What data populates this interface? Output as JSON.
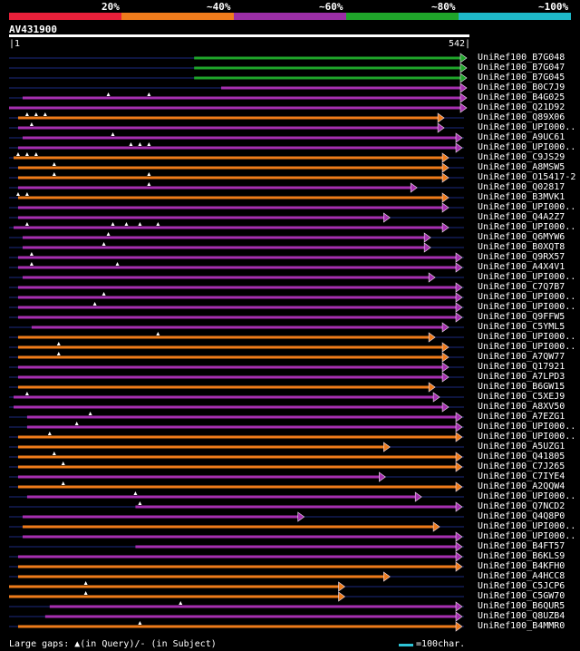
{
  "scale": {
    "labels": [
      "20%",
      "~40%",
      "~60%",
      "~80%",
      "~100%"
    ],
    "colors": [
      "#e8203a",
      "#f07c1c",
      "#9b2ea6",
      "#1fa52a",
      "#1eb8c8"
    ]
  },
  "query": {
    "id": "AV431900",
    "start": "|1",
    "end": "542|"
  },
  "hit_colors": {
    "green": "#1fa52a",
    "orange": "#ee7b1a",
    "purple": "#a62fb0",
    "navy": "#1b2a80"
  },
  "hits": [
    {
      "label": "UniRef100_B7G048",
      "c": "green",
      "s": 0.41,
      "e": 1.0,
      "g": []
    },
    {
      "label": "UniRef100_B7G047",
      "c": "green",
      "s": 0.41,
      "e": 1.0,
      "g": []
    },
    {
      "label": "UniRef100_B7G045",
      "c": "green",
      "s": 0.41,
      "e": 1.0,
      "g": []
    },
    {
      "label": "UniRef100_B0C7J9",
      "c": "purple",
      "s": 0.47,
      "e": 1.0,
      "g": []
    },
    {
      "label": "UniRef100_B4G025",
      "c": "purple",
      "s": 0.03,
      "e": 1.0,
      "g": [
        0.22,
        0.31
      ]
    },
    {
      "label": "UniRef100_Q21D92",
      "c": "purple",
      "s": 0.0,
      "e": 1.0,
      "g": []
    },
    {
      "label": "UniRef100_Q89X06",
      "c": "orange",
      "s": 0.02,
      "e": 0.95,
      "g": [
        0.04,
        0.06,
        0.08
      ]
    },
    {
      "label": "UniRef100_UPI000..",
      "c": "purple",
      "s": 0.02,
      "e": 0.95,
      "g": [
        0.05
      ]
    },
    {
      "label": "UniRef100_A9UC61",
      "c": "purple",
      "s": 0.03,
      "e": 0.99,
      "g": [
        0.23
      ]
    },
    {
      "label": "UniRef100_UPI000..",
      "c": "purple",
      "s": 0.02,
      "e": 0.99,
      "g": [
        0.27,
        0.29,
        0.31
      ]
    },
    {
      "label": "UniRef100_C9JS29",
      "c": "orange",
      "s": 0.01,
      "e": 0.96,
      "g": [
        0.02,
        0.04,
        0.06
      ]
    },
    {
      "label": "UniRef100_A8MSW5",
      "c": "orange",
      "s": 0.02,
      "e": 0.96,
      "g": [
        0.1
      ]
    },
    {
      "label": "UniRef100_O15417-2",
      "c": "orange",
      "s": 0.02,
      "e": 0.96,
      "g": [
        0.1,
        0.31
      ]
    },
    {
      "label": "UniRef100_Q02817",
      "c": "purple",
      "s": 0.02,
      "e": 0.89,
      "g": [
        0.31
      ]
    },
    {
      "label": "UniRef100_B3MVK1",
      "c": "orange",
      "s": 0.02,
      "e": 0.96,
      "g": [
        0.02,
        0.04
      ]
    },
    {
      "label": "UniRef100_UPI000..",
      "c": "purple",
      "s": 0.02,
      "e": 0.96,
      "g": []
    },
    {
      "label": "UniRef100_Q4A2Z7",
      "c": "purple",
      "s": 0.02,
      "e": 0.83,
      "g": []
    },
    {
      "label": "UniRef100_UPI000..",
      "c": "purple",
      "s": 0.01,
      "e": 0.96,
      "g": [
        0.04,
        0.23,
        0.26,
        0.29,
        0.33
      ]
    },
    {
      "label": "UniRef100_Q6MYW6",
      "c": "purple",
      "s": 0.03,
      "e": 0.92,
      "g": [
        0.22
      ]
    },
    {
      "label": "UniRef100_B0XQT8",
      "c": "purple",
      "s": 0.03,
      "e": 0.92,
      "g": [
        0.21
      ]
    },
    {
      "label": "UniRef100_Q9RX57",
      "c": "purple",
      "s": 0.02,
      "e": 0.99,
      "g": [
        0.05
      ]
    },
    {
      "label": "UniRef100_A4X4V1",
      "c": "purple",
      "s": 0.02,
      "e": 0.99,
      "g": [
        0.05,
        0.24
      ]
    },
    {
      "label": "UniRef100_UPI000..",
      "c": "purple",
      "s": 0.03,
      "e": 0.93,
      "g": []
    },
    {
      "label": "UniRef100_C7Q7B7",
      "c": "purple",
      "s": 0.02,
      "e": 0.99,
      "g": []
    },
    {
      "label": "UniRef100_UPI000..",
      "c": "purple",
      "s": 0.02,
      "e": 0.99,
      "g": [
        0.21
      ]
    },
    {
      "label": "UniRef100_UPI000..",
      "c": "purple",
      "s": 0.02,
      "e": 0.99,
      "g": [
        0.19
      ]
    },
    {
      "label": "UniRef100_Q9FFW5",
      "c": "purple",
      "s": 0.02,
      "e": 0.99,
      "g": []
    },
    {
      "label": "UniRef100_C5YML5",
      "c": "purple",
      "s": 0.05,
      "e": 0.96,
      "g": []
    },
    {
      "label": "UniRef100_UPI000..",
      "c": "orange",
      "s": 0.02,
      "e": 0.93,
      "g": [
        0.33
      ]
    },
    {
      "label": "UniRef100_UPI000..",
      "c": "orange",
      "s": 0.02,
      "e": 0.96,
      "g": [
        0.11
      ]
    },
    {
      "label": "UniRef100_A7QW77",
      "c": "orange",
      "s": 0.02,
      "e": 0.96,
      "g": [
        0.11
      ]
    },
    {
      "label": "UniRef100_Q17921",
      "c": "purple",
      "s": 0.02,
      "e": 0.96,
      "g": []
    },
    {
      "label": "UniRef100_A7LPD3",
      "c": "purple",
      "s": 0.02,
      "e": 0.96,
      "g": []
    },
    {
      "label": "UniRef100_B6GW15",
      "c": "orange",
      "s": 0.02,
      "e": 0.93,
      "g": []
    },
    {
      "label": "UniRef100_C5XEJ9",
      "c": "purple",
      "s": 0.01,
      "e": 0.94,
      "g": [
        0.04
      ]
    },
    {
      "label": "UniRef100_A8XV50",
      "c": "purple",
      "s": 0.01,
      "e": 0.96,
      "g": []
    },
    {
      "label": "UniRef100_A7EZG1",
      "c": "purple",
      "s": 0.04,
      "e": 0.99,
      "g": [
        0.18
      ]
    },
    {
      "label": "UniRef100_UPI000..",
      "c": "purple",
      "s": 0.04,
      "e": 0.99,
      "g": [
        0.15
      ]
    },
    {
      "label": "UniRef100_UPI000..",
      "c": "orange",
      "s": 0.02,
      "e": 0.99,
      "g": [
        0.09
      ]
    },
    {
      "label": "UniRef100_A5UZG1",
      "c": "orange",
      "s": 0.02,
      "e": 0.83,
      "g": []
    },
    {
      "label": "UniRef100_Q41805",
      "c": "orange",
      "s": 0.02,
      "e": 0.99,
      "g": [
        0.1
      ]
    },
    {
      "label": "UniRef100_C7J265",
      "c": "orange",
      "s": 0.02,
      "e": 0.99,
      "g": [
        0.12
      ]
    },
    {
      "label": "UniRef100_C7IYE4",
      "c": "purple",
      "s": 0.02,
      "e": 0.82,
      "g": []
    },
    {
      "label": "UniRef100_A2QQW4",
      "c": "orange",
      "s": 0.02,
      "e": 0.99,
      "g": [
        0.12
      ]
    },
    {
      "label": "UniRef100_UPI000..",
      "c": "purple",
      "s": 0.04,
      "e": 0.9,
      "g": [
        0.28
      ]
    },
    {
      "label": "UniRef100_Q7NCD2",
      "c": "purple",
      "s": 0.28,
      "e": 0.99,
      "g": [
        0.29
      ]
    },
    {
      "label": "UniRef100_Q4Q8P0",
      "c": "purple",
      "s": 0.03,
      "e": 0.64,
      "g": []
    },
    {
      "label": "UniRef100_UPI000..",
      "c": "orange",
      "s": 0.03,
      "e": 0.94,
      "g": []
    },
    {
      "label": "UniRef100_UPI000..",
      "c": "purple",
      "s": 0.03,
      "e": 0.99,
      "g": []
    },
    {
      "label": "UniRef100_B4FT57",
      "c": "purple",
      "s": 0.28,
      "e": 0.99,
      "g": []
    },
    {
      "label": "UniRef100_B6KLS9",
      "c": "purple",
      "s": 0.02,
      "e": 0.99,
      "g": []
    },
    {
      "label": "UniRef100_B4KFH0",
      "c": "orange",
      "s": 0.02,
      "e": 0.99,
      "g": []
    },
    {
      "label": "UniRef100_A4HCC8",
      "c": "orange",
      "s": 0.02,
      "e": 0.83,
      "g": []
    },
    {
      "label": "UniRef100_C5JCP6",
      "c": "orange",
      "s": 0.0,
      "e": 0.73,
      "g": [
        0.17
      ]
    },
    {
      "label": "UniRef100_C5GW70",
      "c": "orange",
      "s": 0.0,
      "e": 0.73,
      "g": [
        0.17
      ]
    },
    {
      "label": "UniRef100_B6QUR5",
      "c": "purple",
      "s": 0.09,
      "e": 0.99,
      "g": [
        0.38
      ]
    },
    {
      "label": "UniRef100_Q8UZB4",
      "c": "purple",
      "s": 0.08,
      "e": 0.99,
      "g": []
    },
    {
      "label": "UniRef100_B4MMR0",
      "c": "orange",
      "s": 0.02,
      "e": 0.99,
      "g": [
        0.29
      ]
    }
  ],
  "footer": {
    "text": "Large gaps: ▲(in Query)/- (in Subject)",
    "scale_text": "=100char."
  }
}
